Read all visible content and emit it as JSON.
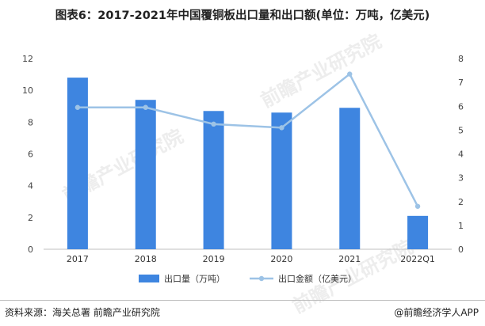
{
  "title": "图表6：2017-2021年中国覆铜板出口量和出口额(单位：万吨，亿美元)",
  "source": "资料来源：海关总署 前瞻产业研究院",
  "credit": "@前瞻经济学人APP",
  "watermark": "前瞻产业研究院",
  "chart_data": {
    "type": "bar+line",
    "categories": [
      "2017",
      "2018",
      "2019",
      "2020",
      "2021",
      "2022Q1"
    ],
    "series": [
      {
        "name": "出口量（万吨）",
        "type": "bar",
        "axis": "left",
        "color": "#3E85E0",
        "values": [
          10.8,
          9.4,
          8.7,
          8.6,
          8.9,
          2.1
        ]
      },
      {
        "name": "出口金额（亿美元）",
        "type": "line",
        "axis": "right",
        "color": "#9DC3E6",
        "values": [
          5.95,
          5.95,
          5.25,
          5.1,
          7.35,
          1.8
        ]
      }
    ],
    "y_left": {
      "min": 0,
      "max": 12,
      "ticks": [
        0,
        2,
        4,
        6,
        8,
        10,
        12
      ]
    },
    "y_right": {
      "min": 0,
      "max": 8,
      "ticks": [
        0,
        1,
        2,
        3,
        4,
        5,
        6,
        7,
        8
      ]
    },
    "legend": "bottom-center",
    "grid": false
  }
}
